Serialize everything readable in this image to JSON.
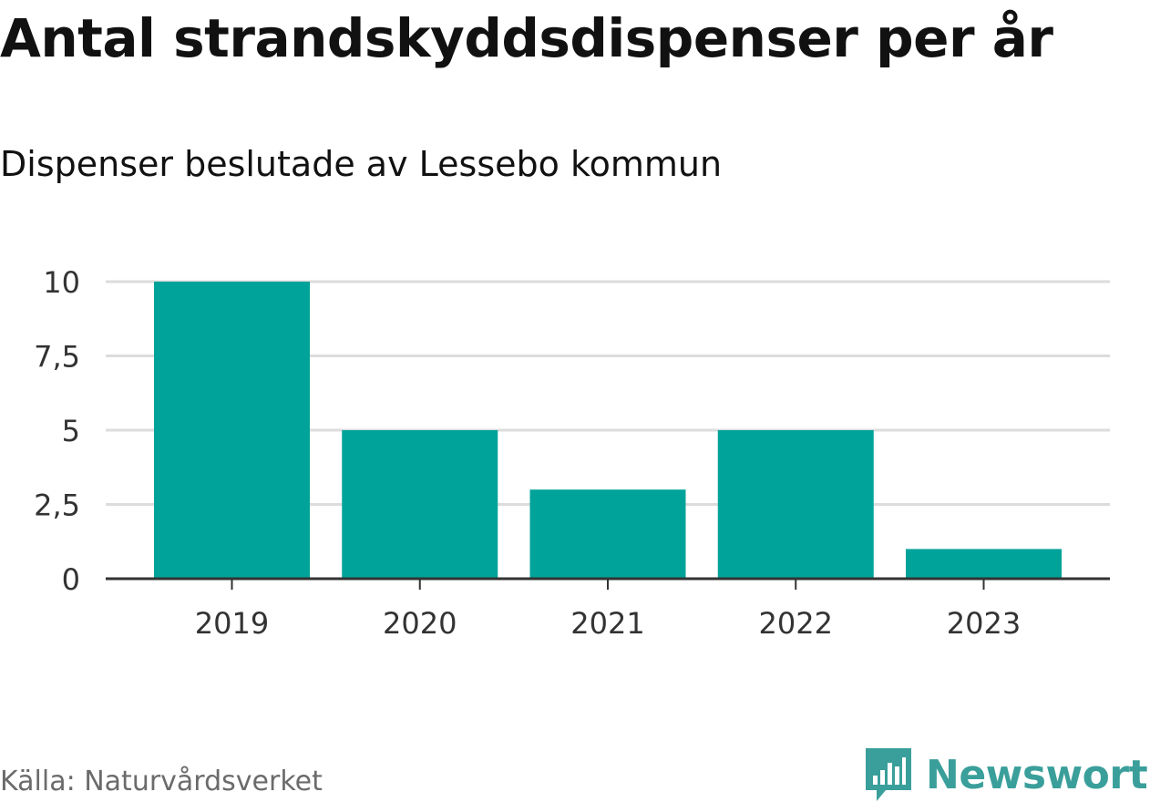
{
  "header": {
    "title": "Antal strandskyddsdispenser per år",
    "subtitle": "Dispenser beslutade av Lessebo kommun"
  },
  "footer": {
    "source": "Källa: Naturvårdsverket",
    "brand": "Newsworthy",
    "brand_icon": "newsworthy-logo-icon"
  },
  "colors": {
    "bar": "#00a39a",
    "grid": "#dcdcdc",
    "axis": "#333333",
    "brand": "#3a9f9a"
  },
  "chart_data": {
    "type": "bar",
    "title": "Antal strandskyddsdispenser per år",
    "subtitle": "Dispenser beslutade av Lessebo kommun",
    "categories": [
      "2019",
      "2020",
      "2021",
      "2022",
      "2023"
    ],
    "values": [
      10,
      5,
      3,
      5,
      1
    ],
    "xlabel": "",
    "ylabel": "",
    "ylim": [
      0,
      10
    ],
    "yticks": [
      0,
      2.5,
      5,
      7.5,
      10
    ],
    "ytick_labels": [
      "0",
      "2,5",
      "5",
      "7,5",
      "10"
    ],
    "grid": true,
    "legend": "none"
  }
}
